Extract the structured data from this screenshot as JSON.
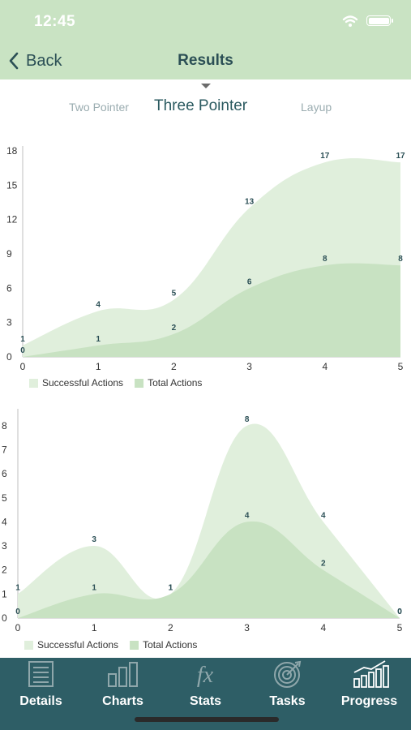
{
  "status": {
    "time": "12:45"
  },
  "nav": {
    "back_label": "Back",
    "title": "Results"
  },
  "segments": {
    "two": "Two Pointer",
    "three": "Three Pointer",
    "layup": "Layup",
    "selected": "Three Pointer"
  },
  "colors": {
    "bar": "#c9e3c3",
    "success_fill": "#e0efdc",
    "total_fill": "#c8e2c2",
    "tab_bar": "#2e5e66",
    "text_dark": "#2b4f55"
  },
  "charts": [
    {
      "type": "area",
      "x": [
        0,
        1,
        2,
        3,
        4,
        5
      ],
      "x_tick_labels": [
        "0",
        "1",
        "2",
        "3",
        "4",
        "5"
      ],
      "y_tick_labels": [
        "0",
        "3",
        "6",
        "9",
        "12",
        "15",
        "18"
      ],
      "ylim": [
        0,
        18
      ],
      "series": [
        {
          "name": "Successful Actions",
          "values": [
            1,
            4,
            5,
            13,
            17,
            17
          ]
        },
        {
          "name": "Total Actions",
          "values": [
            0,
            1,
            2,
            6,
            8,
            8
          ]
        }
      ],
      "legend": [
        "Successful Actions",
        "Total Actions"
      ]
    },
    {
      "type": "area",
      "x": [
        0,
        1,
        2,
        3,
        4,
        5
      ],
      "x_tick_labels": [
        "0",
        "1",
        "2",
        "3",
        "4",
        "5"
      ],
      "y_tick_labels": [
        "0",
        "1",
        "2",
        "3",
        "4",
        "5",
        "6",
        "7",
        "8"
      ],
      "ylim": [
        0,
        8.5
      ],
      "series": [
        {
          "name": "Successful Actions",
          "values": [
            1,
            3,
            1,
            8,
            4,
            0
          ]
        },
        {
          "name": "Total Actions",
          "values": [
            0,
            1,
            1,
            4,
            2,
            0
          ]
        }
      ],
      "legend": [
        "Successful Actions",
        "Total Actions"
      ]
    }
  ],
  "tabs": [
    {
      "label": "Details",
      "icon": "details-icon"
    },
    {
      "label": "Charts",
      "icon": "charts-icon"
    },
    {
      "label": "Stats",
      "icon": "stats-fx-icon"
    },
    {
      "label": "Tasks",
      "icon": "tasks-target-icon"
    },
    {
      "label": "Progress",
      "icon": "progress-icon"
    }
  ]
}
